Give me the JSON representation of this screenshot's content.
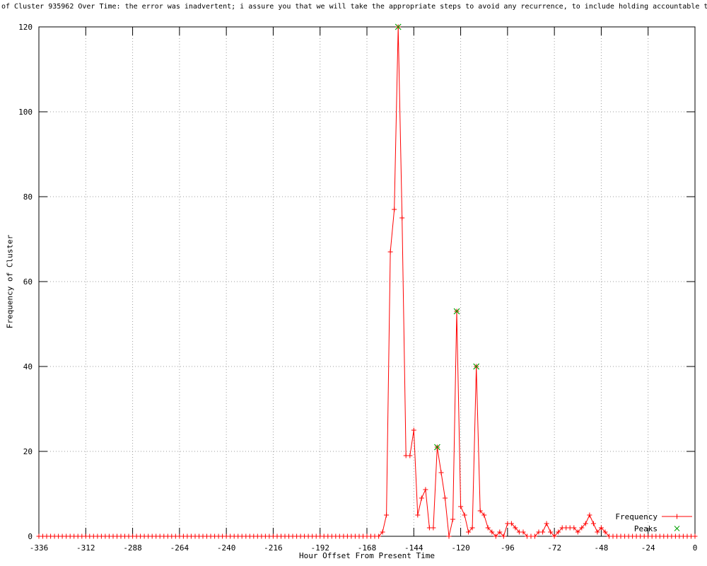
{
  "colors": {
    "frequency": "#ff0000",
    "peaks": "#00a000",
    "grid": "#9e9e9e",
    "axis": "#000000",
    "background": "#ffffff"
  },
  "chart_data": {
    "type": "line",
    "title": "of Cluster 935962 Over Time: the error was inadvertent; i assure you that we will take the appropriate steps to avoid any recurrence, to include holding accountable th",
    "xlabel": "Hour Offset From Present Time",
    "ylabel": "Frequency of Cluster",
    "xlim": [
      -336,
      0
    ],
    "ylim": [
      0,
      120
    ],
    "xticks": [
      -336,
      -312,
      -288,
      -264,
      -240,
      -216,
      -192,
      -168,
      -144,
      -120,
      -96,
      -72,
      -48,
      -24,
      0
    ],
    "yticks": [
      0,
      20,
      40,
      60,
      80,
      100,
      120
    ],
    "grid": true,
    "legend_position": "bottom-right",
    "series": [
      {
        "name": "Frequency",
        "marker": "plus",
        "color": "#ff0000",
        "start_hour": -336,
        "step_hours": 2,
        "values": [
          0,
          0,
          0,
          0,
          0,
          0,
          0,
          0,
          0,
          0,
          0,
          0,
          0,
          0,
          0,
          0,
          0,
          0,
          0,
          0,
          0,
          0,
          0,
          0,
          0,
          0,
          0,
          0,
          0,
          0,
          0,
          0,
          0,
          0,
          0,
          0,
          0,
          0,
          0,
          0,
          0,
          0,
          0,
          0,
          0,
          0,
          0,
          0,
          0,
          0,
          0,
          0,
          0,
          0,
          0,
          0,
          0,
          0,
          0,
          0,
          0,
          0,
          0,
          0,
          0,
          0,
          0,
          0,
          0,
          0,
          0,
          0,
          0,
          0,
          0,
          0,
          0,
          0,
          0,
          0,
          0,
          0,
          0,
          0,
          0,
          0,
          0,
          0,
          1,
          5,
          67,
          77,
          120,
          75,
          19,
          19,
          25,
          5,
          9,
          11,
          2,
          2,
          21,
          15,
          9,
          0,
          4,
          53,
          7,
          5,
          1,
          2,
          40,
          6,
          5,
          2,
          1,
          0,
          1,
          0,
          3,
          3,
          2,
          1,
          1,
          0,
          0,
          0,
          1,
          1,
          3,
          1,
          0,
          1,
          2,
          2,
          2,
          2,
          1,
          2,
          3,
          5,
          3,
          1,
          2,
          1,
          0,
          0,
          0,
          0,
          0,
          0,
          0,
          0,
          0,
          0,
          0,
          0,
          0,
          0,
          0,
          0,
          0,
          0,
          0,
          0,
          0,
          0,
          0
        ]
      },
      {
        "name": "Peaks",
        "marker": "x",
        "color": "#00a000",
        "points": [
          [
            -152,
            120
          ],
          [
            -132,
            21
          ],
          [
            -122,
            53
          ],
          [
            -112,
            40
          ]
        ]
      }
    ]
  }
}
